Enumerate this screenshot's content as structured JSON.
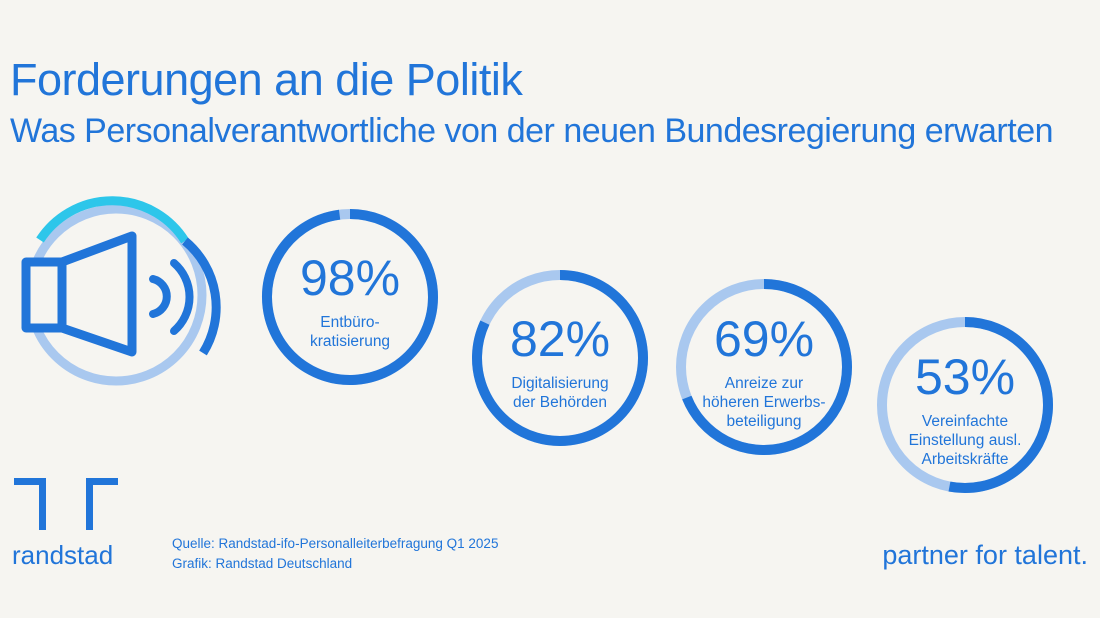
{
  "header": {
    "title": "Forderungen an die Politik",
    "subtitle": "Was Personalverantwortliche von der neuen Bundesregierung erwarten"
  },
  "icon": {
    "name": "speaker-icon"
  },
  "chart_data": {
    "type": "pie",
    "title": "Forderungen an die Politik",
    "subtitle": "Was Personalverantwortliche von der neuen Bundesregierung erwarten",
    "unit": "%",
    "items": [
      {
        "value": 98,
        "value_label": "98%",
        "label_lines": [
          "Entbüro-",
          "kratisierung"
        ]
      },
      {
        "value": 82,
        "value_label": "82%",
        "label_lines": [
          "Digitalisierung",
          "der Behörden"
        ]
      },
      {
        "value": 69,
        "value_label": "69%",
        "label_lines": [
          "Anreize zur",
          "höheren Erwerbs-",
          "beteiligung"
        ]
      },
      {
        "value": 53,
        "value_label": "53%",
        "label_lines": [
          "Vereinfachte",
          "Einstellung ausl.",
          "Arbeitskräfte"
        ]
      }
    ]
  },
  "colors": {
    "primary": "#2175d9",
    "track": "#a9c8ef",
    "accent": "#2dc6ea",
    "background": "#f6f5f1"
  },
  "footer": {
    "logo_text": "randstad",
    "source_line": "Quelle: Randstad-ifo-Personalleiterbefragung Q1 2025",
    "credit_line": "Grafik: Randstad Deutschland",
    "tagline": "partner for talent."
  }
}
